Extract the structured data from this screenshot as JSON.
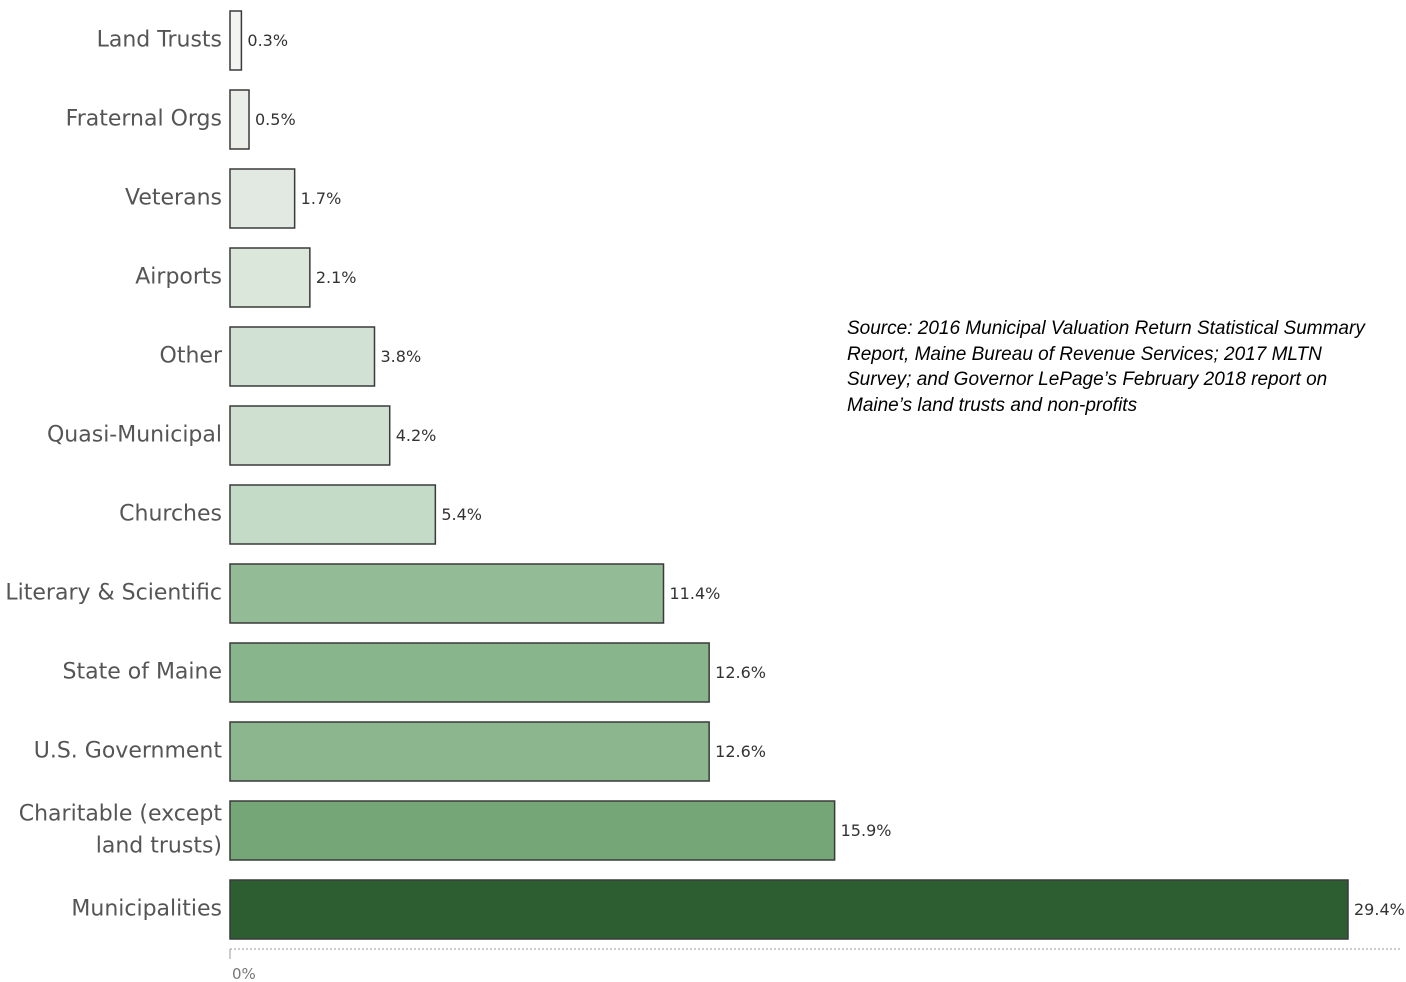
{
  "source_note": "Source: 2016 Municipal Valuation Return Statistical Summary Report, Maine Bureau of Revenue Services; 2017 MLTN Survey; and Governor LePage’s February 2018 report on Maine’s land trusts and non-profits",
  "colors": {
    "bar_scale": [
      "#f3f4f2",
      "#eceeea",
      "#e2e9e2",
      "#dce7dc",
      "#d1e2d4",
      "#cfe0d1",
      "#c4dbc8",
      "#93bc96",
      "#89b58c",
      "#8bb68e",
      "#75a678",
      "#2c5e32"
    ],
    "bar_outline": "#3a3a3a",
    "axis": "#999999"
  },
  "chart_data": {
    "type": "bar",
    "orientation": "horizontal",
    "title": "",
    "xlabel": "",
    "ylabel": "",
    "categories": [
      "Land Trusts",
      "Fraternal Orgs",
      "Veterans",
      "Airports",
      "Other",
      "Quasi-Municipal",
      "Churches",
      "Literary & Scientific",
      "State of Maine",
      "U.S. Government",
      "Charitable (except land trusts)",
      "Municipalities"
    ],
    "category_label_lines": [
      [
        "Land Trusts"
      ],
      [
        "Fraternal Orgs"
      ],
      [
        "Veterans"
      ],
      [
        "Airports"
      ],
      [
        "Other"
      ],
      [
        "Quasi-Municipal"
      ],
      [
        "Churches"
      ],
      [
        "Literary & Scientific"
      ],
      [
        "State of Maine"
      ],
      [
        "U.S. Government"
      ],
      [
        "Charitable (except",
        "land trusts)"
      ],
      [
        "Municipalities"
      ]
    ],
    "values": [
      0.3,
      0.5,
      1.7,
      2.1,
      3.8,
      4.2,
      5.4,
      11.4,
      12.6,
      12.6,
      15.9,
      29.4
    ],
    "value_labels": [
      "0.3%",
      "0.5%",
      "1.7%",
      "2.1%",
      "3.8%",
      "4.2%",
      "5.4%",
      "11.4%",
      "12.6%",
      "12.6%",
      "15.9%",
      "29.4%"
    ],
    "x_ticks": [
      0
    ],
    "x_tick_labels": [
      "0%"
    ],
    "xlim": [
      0,
      29.4
    ],
    "grid": false,
    "legend": "none"
  }
}
